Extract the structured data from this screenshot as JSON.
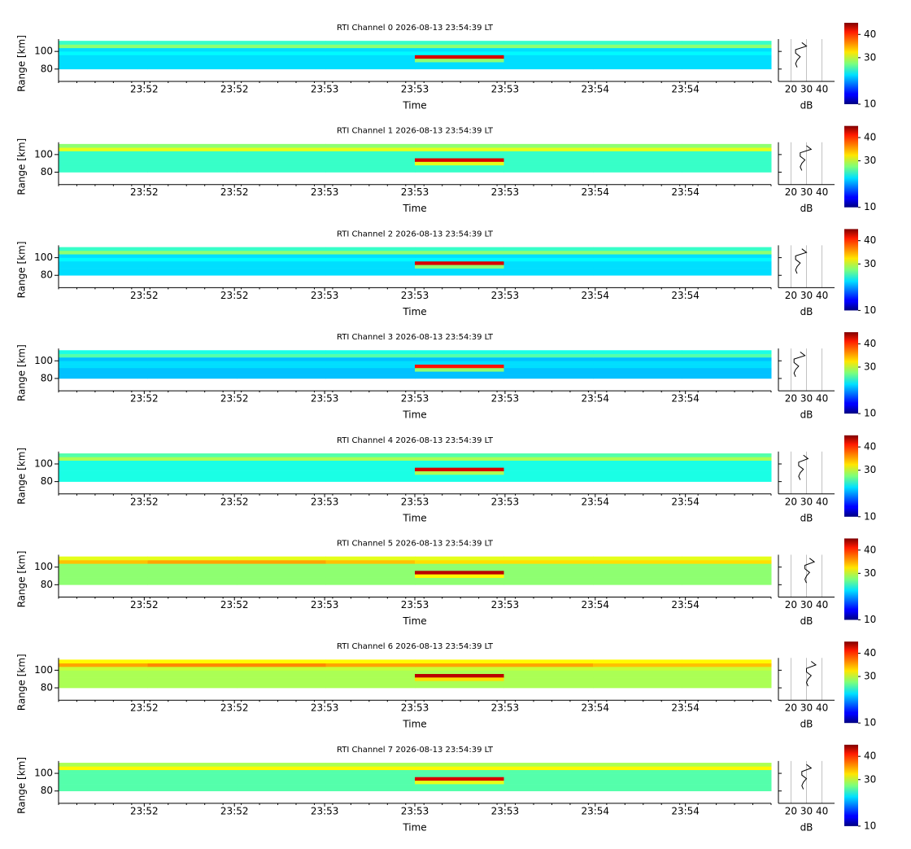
{
  "chart_data": [
    {
      "type": "heatmap",
      "title": "RTI Channel 0 2026-08-13 23:54:39 LT",
      "ylabel": "Range [km]",
      "xlabel": "Time",
      "ylim": [
        66,
        114
      ],
      "yticks": [
        80,
        100
      ],
      "range_edges": [
        80,
        84,
        88,
        92,
        96,
        100,
        104,
        108,
        112
      ],
      "time_labels": [
        "23:52",
        "23:52",
        "23:53",
        "23:53",
        "23:53",
        "23:54",
        "23:54"
      ],
      "colormap": "jet",
      "clim": [
        10,
        45
      ],
      "cticks": [
        10,
        30,
        40
      ],
      "z": [
        [
          22,
          22,
          22,
          22,
          22,
          22,
          22,
          22
        ],
        [
          22,
          22,
          22,
          22,
          22,
          22,
          22,
          22
        ],
        [
          22,
          22,
          22,
          22,
          28,
          22,
          22,
          22
        ],
        [
          22,
          22,
          22,
          22,
          42,
          22,
          22,
          22
        ],
        [
          23,
          23,
          23,
          23,
          23,
          23,
          23,
          23
        ],
        [
          22,
          22,
          22,
          22,
          22,
          22,
          22,
          22
        ],
        [
          28,
          28,
          28,
          28,
          28,
          28,
          28,
          28
        ],
        [
          25,
          25,
          25,
          25,
          25,
          25,
          25,
          25
        ]
      ],
      "profile": {
        "values": [
          24,
          23,
          24,
          26,
          23,
          23,
          30,
          27
        ],
        "xlim": [
          12,
          48
        ],
        "xticks": [
          20,
          30,
          40
        ],
        "xlabel": "dB",
        "color": "#000000"
      }
    },
    {
      "type": "heatmap",
      "title": "RTI Channel 1 2026-08-13 23:54:39 LT",
      "ylabel": "Range [km]",
      "xlabel": "Time",
      "ylim": [
        66,
        114
      ],
      "yticks": [
        80,
        100
      ],
      "range_edges": [
        80,
        84,
        88,
        92,
        96,
        100,
        104,
        108,
        112
      ],
      "time_labels": [
        "23:52",
        "23:52",
        "23:53",
        "23:53",
        "23:53",
        "23:54",
        "23:54"
      ],
      "colormap": "jet",
      "clim": [
        10,
        45
      ],
      "cticks": [
        10,
        30,
        40
      ],
      "z": [
        [
          25,
          25,
          25,
          25,
          25,
          25,
          25,
          25
        ],
        [
          25,
          25,
          25,
          25,
          25,
          25,
          25,
          25
        ],
        [
          25,
          25,
          25,
          25,
          31,
          25,
          25,
          25
        ],
        [
          25,
          25,
          25,
          25,
          42,
          25,
          25,
          25
        ],
        [
          25,
          25,
          25,
          25,
          25,
          25,
          25,
          25
        ],
        [
          25,
          25,
          25,
          25,
          25,
          25,
          25,
          25
        ],
        [
          31,
          31,
          31,
          31,
          31,
          31,
          31,
          31
        ],
        [
          28,
          28,
          28,
          28,
          28,
          28,
          28,
          28
        ]
      ],
      "profile": {
        "values": [
          27,
          26,
          27,
          29,
          26,
          26,
          33,
          30
        ],
        "xlim": [
          12,
          48
        ],
        "xticks": [
          20,
          30,
          40
        ],
        "xlabel": "dB",
        "color": "#000000"
      }
    },
    {
      "type": "heatmap",
      "title": "RTI Channel 2 2026-08-13 23:54:39 LT",
      "ylabel": "Range [km]",
      "xlabel": "Time",
      "ylim": [
        66,
        114
      ],
      "yticks": [
        80,
        100
      ],
      "range_edges": [
        80,
        84,
        88,
        92,
        96,
        100,
        104,
        108,
        112
      ],
      "time_labels": [
        "23:52",
        "23:52",
        "23:53",
        "23:53",
        "23:53",
        "23:54",
        "23:54"
      ],
      "colormap": "jet",
      "clim": [
        10,
        45
      ],
      "cticks": [
        10,
        30,
        40
      ],
      "z": [
        [
          22,
          22,
          22,
          22,
          22,
          22,
          22,
          22
        ],
        [
          22,
          22,
          22,
          22,
          22,
          22,
          22,
          22
        ],
        [
          22,
          22,
          22,
          22,
          28,
          22,
          22,
          22
        ],
        [
          22,
          22,
          22,
          22,
          42,
          22,
          22,
          22
        ],
        [
          23,
          23,
          23,
          23,
          23,
          23,
          23,
          23
        ],
        [
          22,
          22,
          22,
          22,
          22,
          22,
          22,
          22
        ],
        [
          28,
          28,
          28,
          28,
          28,
          28,
          28,
          28
        ],
        [
          25,
          25,
          25,
          25,
          25,
          25,
          25,
          25
        ]
      ],
      "profile": {
        "values": [
          24,
          23,
          24,
          26,
          23,
          23,
          30,
          27
        ],
        "xlim": [
          12,
          48
        ],
        "xticks": [
          20,
          30,
          40
        ],
        "xlabel": "dB",
        "color": "#000000"
      }
    },
    {
      "type": "heatmap",
      "title": "RTI Channel 3 2026-08-13 23:54:39 LT",
      "ylabel": "Range [km]",
      "xlabel": "Time",
      "ylim": [
        66,
        114
      ],
      "yticks": [
        80,
        100
      ],
      "range_edges": [
        80,
        84,
        88,
        92,
        96,
        100,
        104,
        108,
        112
      ],
      "time_labels": [
        "23:52",
        "23:52",
        "23:53",
        "23:53",
        "23:53",
        "23:54",
        "23:54"
      ],
      "colormap": "jet",
      "clim": [
        10,
        45
      ],
      "cticks": [
        10,
        30,
        40
      ],
      "z": [
        [
          21,
          21,
          21,
          21,
          21,
          21,
          21,
          21
        ],
        [
          21,
          21,
          21,
          21,
          21,
          21,
          21,
          21
        ],
        [
          21,
          21,
          21,
          21,
          28,
          21,
          21,
          21
        ],
        [
          22,
          22,
          22,
          22,
          40,
          22,
          22,
          22
        ],
        [
          22,
          22,
          22,
          22,
          22,
          22,
          22,
          22
        ],
        [
          21,
          21,
          21,
          21,
          21,
          21,
          21,
          21
        ],
        [
          26,
          26,
          26,
          26,
          26,
          26,
          26,
          26
        ],
        [
          24,
          24,
          24,
          24,
          24,
          24,
          24,
          24
        ]
      ],
      "profile": {
        "values": [
          23,
          22,
          23,
          25,
          22,
          22,
          29,
          26
        ],
        "xlim": [
          12,
          48
        ],
        "xticks": [
          20,
          30,
          40
        ],
        "xlabel": "dB",
        "color": "#000000"
      }
    },
    {
      "type": "heatmap",
      "title": "RTI Channel 4 2026-08-13 23:54:39 LT",
      "ylabel": "Range [km]",
      "xlabel": "Time",
      "ylim": [
        66,
        114
      ],
      "yticks": [
        80,
        100
      ],
      "range_edges": [
        80,
        84,
        88,
        92,
        96,
        100,
        104,
        108,
        112
      ],
      "time_labels": [
        "23:52",
        "23:52",
        "23:53",
        "23:53",
        "23:53",
        "23:54",
        "23:54"
      ],
      "colormap": "jet",
      "clim": [
        10,
        45
      ],
      "cticks": [
        10,
        30,
        40
      ],
      "z": [
        [
          24,
          24,
          24,
          24,
          24,
          24,
          24,
          24
        ],
        [
          24,
          24,
          24,
          24,
          24,
          24,
          24,
          24
        ],
        [
          24,
          24,
          24,
          24,
          29,
          24,
          24,
          24
        ],
        [
          24,
          24,
          24,
          24,
          42,
          24,
          24,
          24
        ],
        [
          24,
          24,
          24,
          24,
          24,
          24,
          24,
          24
        ],
        [
          24,
          24,
          24,
          24,
          24,
          24,
          24,
          24
        ],
        [
          29,
          29,
          29,
          29,
          29,
          29,
          29,
          29
        ],
        [
          26,
          26,
          26,
          26,
          26,
          26,
          26,
          26
        ]
      ],
      "profile": {
        "values": [
          26,
          25,
          26,
          28,
          25,
          25,
          31,
          28
        ],
        "xlim": [
          12,
          48
        ],
        "xticks": [
          20,
          30,
          40
        ],
        "xlabel": "dB",
        "color": "#000000"
      }
    },
    {
      "type": "heatmap",
      "title": "RTI Channel 5 2026-08-13 23:54:39 LT",
      "ylabel": "Range [km]",
      "xlabel": "Time",
      "ylim": [
        66,
        114
      ],
      "yticks": [
        80,
        100
      ],
      "range_edges": [
        80,
        84,
        88,
        92,
        96,
        100,
        104,
        108,
        112
      ],
      "time_labels": [
        "23:52",
        "23:52",
        "23:53",
        "23:53",
        "23:53",
        "23:54",
        "23:54"
      ],
      "colormap": "jet",
      "clim": [
        10,
        45
      ],
      "cticks": [
        10,
        30,
        40
      ],
      "z": [
        [
          28,
          28,
          28,
          28,
          28,
          28,
          28,
          28
        ],
        [
          28,
          28,
          28,
          28,
          28,
          28,
          28,
          28
        ],
        [
          28,
          28,
          28,
          28,
          32,
          28,
          28,
          28
        ],
        [
          28,
          28,
          28,
          28,
          43,
          28,
          28,
          28
        ],
        [
          28,
          28,
          28,
          28,
          28,
          28,
          28,
          28
        ],
        [
          28,
          28,
          28,
          28,
          28,
          28,
          28,
          28
        ],
        [
          34,
          35,
          35,
          34,
          33,
          33,
          33,
          33
        ],
        [
          31,
          31,
          31,
          31,
          31,
          31,
          31,
          31
        ]
      ],
      "profile": {
        "values": [
          30,
          29,
          30,
          32,
          29,
          29,
          35,
          32
        ],
        "xlim": [
          12,
          48
        ],
        "xticks": [
          20,
          30,
          40
        ],
        "xlabel": "dB",
        "color": "#000000"
      }
    },
    {
      "type": "heatmap",
      "title": "RTI Channel 6 2026-08-13 23:54:39 LT",
      "ylabel": "Range [km]",
      "xlabel": "Time",
      "ylim": [
        66,
        114
      ],
      "yticks": [
        80,
        100
      ],
      "range_edges": [
        80,
        84,
        88,
        92,
        96,
        100,
        104,
        108,
        112
      ],
      "time_labels": [
        "23:52",
        "23:52",
        "23:53",
        "23:53",
        "23:53",
        "23:54",
        "23:54"
      ],
      "colormap": "jet",
      "clim": [
        10,
        45
      ],
      "cticks": [
        10,
        30,
        40
      ],
      "z": [
        [
          29,
          29,
          29,
          29,
          29,
          29,
          29,
          29
        ],
        [
          29,
          29,
          29,
          29,
          29,
          29,
          29,
          29
        ],
        [
          29,
          29,
          29,
          29,
          33,
          29,
          29,
          29
        ],
        [
          29,
          29,
          29,
          29,
          43,
          29,
          29,
          29
        ],
        [
          29,
          29,
          29,
          29,
          29,
          29,
          29,
          29
        ],
        [
          30,
          30,
          30,
          30,
          30,
          30,
          30,
          30
        ],
        [
          35,
          36,
          36,
          35,
          35,
          35,
          34,
          34
        ],
        [
          32,
          32,
          32,
          32,
          32,
          32,
          32,
          32
        ]
      ],
      "profile": {
        "values": [
          31,
          30,
          31,
          33,
          30,
          30,
          36,
          33
        ],
        "xlim": [
          12,
          48
        ],
        "xticks": [
          20,
          30,
          40
        ],
        "xlabel": "dB",
        "color": "#000000"
      }
    },
    {
      "type": "heatmap",
      "title": "RTI Channel 7 2026-08-13 23:54:39 LT",
      "ylabel": "Range [km]",
      "xlabel": "Time",
      "ylim": [
        66,
        114
      ],
      "yticks": [
        80,
        100
      ],
      "range_edges": [
        80,
        84,
        88,
        92,
        96,
        100,
        104,
        108,
        112
      ],
      "time_labels": [
        "23:52",
        "23:52",
        "23:53",
        "23:53",
        "23:53",
        "23:54",
        "23:54"
      ],
      "colormap": "jet",
      "clim": [
        10,
        45
      ],
      "cticks": [
        10,
        30,
        40
      ],
      "z": [
        [
          26,
          26,
          26,
          26,
          26,
          26,
          26,
          26
        ],
        [
          26,
          26,
          26,
          26,
          26,
          26,
          26,
          26
        ],
        [
          26,
          26,
          26,
          26,
          31,
          26,
          26,
          26
        ],
        [
          26,
          26,
          26,
          26,
          42,
          26,
          26,
          26
        ],
        [
          26,
          26,
          26,
          26,
          26,
          26,
          26,
          26
        ],
        [
          26,
          26,
          26,
          26,
          26,
          26,
          26,
          26
        ],
        [
          32,
          32,
          32,
          32,
          32,
          32,
          32,
          32
        ],
        [
          29,
          29,
          29,
          29,
          29,
          29,
          29,
          29
        ]
      ],
      "profile": {
        "values": [
          28,
          27,
          28,
          30,
          27,
          27,
          33,
          30
        ],
        "xlim": [
          12,
          48
        ],
        "xticks": [
          20,
          30,
          40
        ],
        "xlabel": "dB",
        "color": "#000000"
      }
    }
  ]
}
